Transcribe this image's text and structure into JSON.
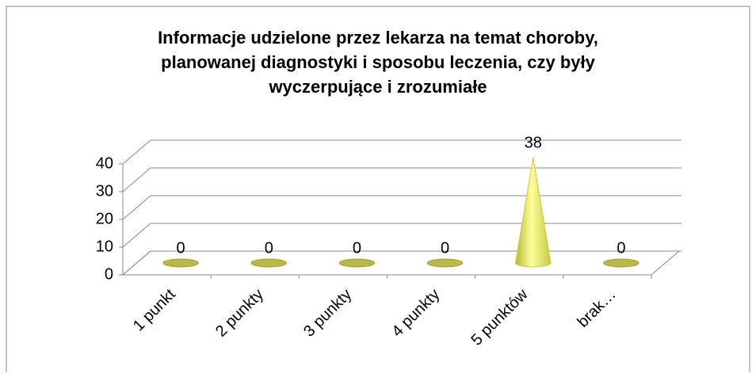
{
  "chart_data": {
    "type": "cone",
    "title": "Informacje udzielone przez lekarza na temat choroby, planowanej diagnostyki i sposobu leczenia, czy były wyczerpujące i zrozumiałe",
    "categories": [
      "1 punkt",
      "2 punkty",
      "3 punkty",
      "4 punkty",
      "5 punktów",
      "brak…"
    ],
    "values": [
      0,
      0,
      0,
      0,
      38,
      0
    ],
    "color": "#e8e85a",
    "ylim": [
      0,
      40
    ],
    "yticks": [
      0,
      10,
      20,
      30,
      40
    ],
    "grid": true
  }
}
